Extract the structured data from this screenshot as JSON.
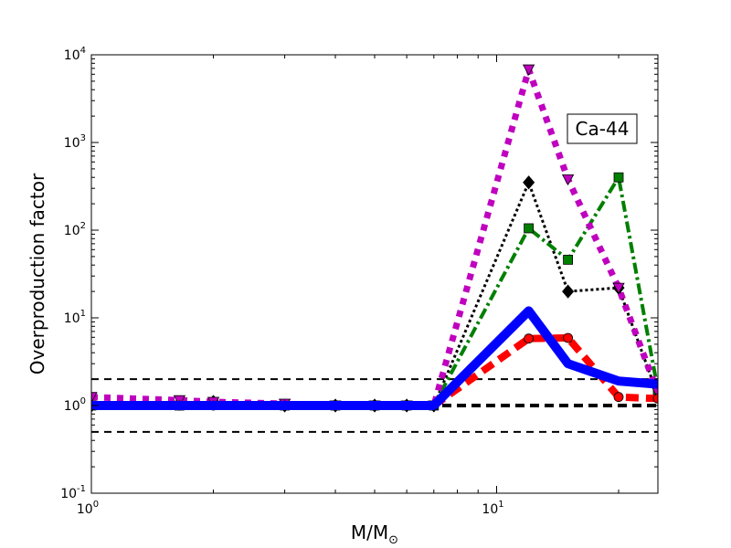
{
  "chart_data": {
    "type": "line",
    "title": "",
    "xlabel": "M/M",
    "xlabel_sub": "⊙",
    "ylabel": "Overproduction factor",
    "xscale": "log",
    "yscale": "log",
    "xlim": [
      1,
      25
    ],
    "ylim": [
      0.1,
      10000
    ],
    "grid": false,
    "annotation": "Ca-44",
    "x_ticks": [
      {
        "value": 1,
        "base": "10",
        "exp": "0"
      },
      {
        "value": 10,
        "base": "10",
        "exp": "1"
      }
    ],
    "y_ticks": [
      {
        "value": 0.1,
        "base": "10",
        "exp": "-1"
      },
      {
        "value": 1,
        "base": "10",
        "exp": "0"
      },
      {
        "value": 10,
        "base": "10",
        "exp": "1"
      },
      {
        "value": 100,
        "base": "10",
        "exp": "2"
      },
      {
        "value": 1000,
        "base": "10",
        "exp": "3"
      },
      {
        "value": 10000,
        "base": "10",
        "exp": "4"
      }
    ],
    "reference_lines": [
      {
        "y": 2.0,
        "color": "#000000",
        "style": "dashed-thin"
      },
      {
        "y": 1.0,
        "color": "#000000",
        "style": "dashed-thick"
      },
      {
        "y": 0.5,
        "color": "#000000",
        "style": "dashed-thin"
      }
    ],
    "series": [
      {
        "color": "#0000ff",
        "style": "solid",
        "marker": "none",
        "x": [
          1,
          1.65,
          2,
          3,
          4,
          5,
          6,
          7,
          12,
          15,
          20,
          25
        ],
        "y": [
          1.0,
          1.0,
          1.0,
          1.0,
          1.0,
          1.0,
          1.0,
          1.0,
          12,
          3.0,
          1.9,
          1.75
        ]
      },
      {
        "color": "#ff0000",
        "style": "dashed",
        "marker": "circle",
        "x": [
          1,
          1.65,
          2,
          3,
          4,
          5,
          6,
          7,
          12,
          15,
          20,
          25
        ],
        "y": [
          1.0,
          1.0,
          1.0,
          1.0,
          1.0,
          1.0,
          1.0,
          1.0,
          5.8,
          5.9,
          1.25,
          1.2
        ]
      },
      {
        "color": "#007f00",
        "style": "dashdot",
        "marker": "square",
        "x": [
          1,
          1.65,
          2,
          3,
          4,
          5,
          6,
          7,
          12,
          15,
          20,
          25
        ],
        "y": [
          1.0,
          1.0,
          1.05,
          1.0,
          1.0,
          1.0,
          1.0,
          1.0,
          105,
          46,
          400,
          1.5
        ]
      },
      {
        "color": "#000000",
        "style": "dotted",
        "marker": "diamond",
        "x": [
          1,
          1.65,
          2,
          3,
          4,
          5,
          6,
          7,
          12,
          15,
          20,
          25
        ],
        "y": [
          1.0,
          1.05,
          1.1,
          1.0,
          1.0,
          1.0,
          1.0,
          1.0,
          350,
          20,
          22,
          1.3
        ]
      },
      {
        "color": "#bf00bf",
        "style": "dotted-thick",
        "marker": "triangle-down",
        "x": [
          1,
          1.65,
          2,
          3,
          4,
          5,
          6,
          7,
          12,
          15,
          20,
          25
        ],
        "y": [
          1.25,
          1.15,
          1.1,
          1.05,
          1.0,
          1.0,
          1.0,
          1.0,
          6800,
          380,
          22,
          1.4
        ]
      }
    ]
  }
}
